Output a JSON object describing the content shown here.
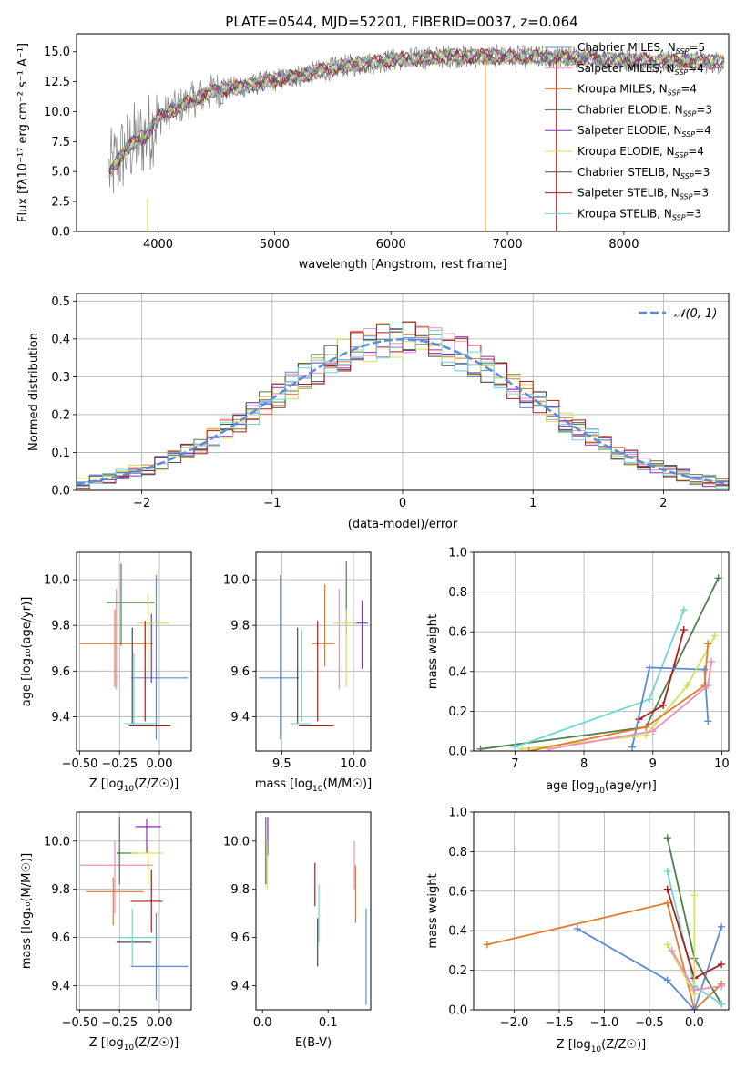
{
  "figure": {
    "title_text": "PLATE=0544, MJD=52201, FIBERID=0037, z=0.064"
  },
  "colors": {
    "chabrier_miles": "#5b8bd9",
    "salpeter_miles": "#e88fbf",
    "kroupa_miles": "#e07b2a",
    "chabrier_elodie": "#4c7f4c",
    "salpeter_elodie": "#8b2bbf",
    "kroupa_elodie": "#d4e05a",
    "chabrier_stelib": "#4a4a4a",
    "salpeter_stelib": "#b01a1a",
    "kroupa_stelib": "#6fd6d6",
    "data_gray": "#7f7f7f",
    "normal_curve": "#5b8bd9"
  },
  "chart_data": [
    {
      "id": "spectrum",
      "type": "line",
      "xlabel": "wavelength [Angstrom, rest frame]",
      "ylabel": "Flux [fλ10⁻¹⁷ erg cm⁻² s⁻¹ A⁻¹]",
      "xlim": [
        3300,
        8900
      ],
      "ylim": [
        0,
        16.5
      ],
      "xticks": [
        4000,
        5000,
        6000,
        7000,
        8000
      ],
      "yticks": [
        0.0,
        2.5,
        5.0,
        7.5,
        10.0,
        12.5,
        15.0
      ],
      "legend_position": "top-right",
      "legend": [
        {
          "label": "Chabrier MILES, N",
          "sub": "SSP",
          "suffix": "=5",
          "color_key": "chabrier_miles"
        },
        {
          "label": "Salpeter MILES, N",
          "sub": "SSP",
          "suffix": "=4",
          "color_key": "salpeter_miles"
        },
        {
          "label": "Kroupa MILES, N",
          "sub": "SSP",
          "suffix": "=4",
          "color_key": "kroupa_miles"
        },
        {
          "label": "Chabrier ELODIE, N",
          "sub": "SSP",
          "suffix": "=3",
          "color_key": "chabrier_elodie"
        },
        {
          "label": "Salpeter ELODIE, N",
          "sub": "SSP",
          "suffix": "=4",
          "color_key": "salpeter_elodie"
        },
        {
          "label": "Kroupa ELODIE, N",
          "sub": "SSP",
          "suffix": "=4",
          "color_key": "kroupa_elodie"
        },
        {
          "label": "Chabrier STELIB, N",
          "sub": "SSP",
          "suffix": "=3",
          "color_key": "chabrier_stelib"
        },
        {
          "label": "Salpeter STELIB, N",
          "sub": "SSP",
          "suffix": "=3",
          "color_key": "salpeter_stelib"
        },
        {
          "label": "Kroupa STELIB, N",
          "sub": "SSP",
          "suffix": "=3",
          "color_key": "kroupa_stelib"
        }
      ],
      "continuum": [
        [
          3580,
          5.0
        ],
        [
          3700,
          6.5
        ],
        [
          3800,
          7.5
        ],
        [
          3900,
          8.0
        ],
        [
          4000,
          9.5
        ],
        [
          4100,
          10.0
        ],
        [
          4300,
          11.0
        ],
        [
          4500,
          11.8
        ],
        [
          4800,
          12.2
        ],
        [
          5000,
          12.6
        ],
        [
          5300,
          13.2
        ],
        [
          5600,
          13.8
        ],
        [
          6000,
          14.3
        ],
        [
          6500,
          14.6
        ],
        [
          7000,
          14.6
        ],
        [
          7500,
          14.5
        ],
        [
          8000,
          14.3
        ],
        [
          8500,
          14.2
        ],
        [
          8900,
          14.1
        ]
      ],
      "vertical_drops": [
        {
          "x": 6810,
          "color_key": "kroupa_miles",
          "y_from": 14.6,
          "y_to": 0
        },
        {
          "x": 7420,
          "color_key": "salpeter_stelib",
          "y_from": 14.5,
          "y_to": 0
        },
        {
          "x": 3910,
          "color_key": "kroupa_elodie",
          "y_from": 2.8,
          "y_to": 0
        }
      ]
    },
    {
      "id": "residuals",
      "type": "histogram",
      "xlabel": "(data-model)/error",
      "ylabel": "Normed distribution",
      "xlim": [
        -2.5,
        2.5
      ],
      "ylim": [
        0,
        0.52
      ],
      "xticks": [
        -2,
        -1,
        0,
        1,
        2
      ],
      "xtick_labels": [
        "−2",
        "−1",
        "0",
        "1",
        "2"
      ],
      "yticks": [
        0.0,
        0.1,
        0.2,
        0.3,
        0.4,
        0.5
      ],
      "grid": true,
      "legend_position": "top-right",
      "legend_label": "𝒩(0, 1)",
      "bin_width": 0.1,
      "bin_start": -2.5
    },
    {
      "id": "age_vs_Z",
      "type": "errorbar",
      "xlabel_main": "Z [log",
      "xlabel_sub": "10",
      "xlabel_tail": "(Z/Z☉)]",
      "ylabel": "age  [log₁₀(age/yr)]",
      "xlim": [
        -0.52,
        0.2
      ],
      "ylim": [
        9.25,
        10.12
      ],
      "xticks": [
        -0.5,
        -0.25,
        0.0
      ],
      "xtick_labels": [
        "−0.50",
        "−0.25",
        "0.00"
      ],
      "yticks": [
        9.4,
        9.6,
        9.8,
        10.0
      ],
      "points": [
        {
          "color_key": "chabrier_miles",
          "x": 0.0,
          "xerr": 0.18,
          "y": 9.57,
          "yerr": 0.0
        },
        {
          "color_key": "chabrier_miles",
          "x": -0.02,
          "xerr": 0.0,
          "y": 9.66,
          "yerr": 0.36
        },
        {
          "color_key": "salpeter_miles",
          "x": -0.27,
          "xerr": 0.0,
          "y": 9.74,
          "yerr": 0.22
        },
        {
          "color_key": "kroupa_miles",
          "x": -0.27,
          "xerr": 0.23,
          "y": 9.72,
          "yerr": 0.0
        },
        {
          "color_key": "kroupa_miles",
          "x": -0.28,
          "xerr": 0.0,
          "y": 9.7,
          "yerr": 0.17
        },
        {
          "color_key": "chabrier_elodie",
          "x": -0.24,
          "xerr": 0.0,
          "y": 9.89,
          "yerr": 0.18
        },
        {
          "color_key": "chabrier_elodie",
          "x": -0.18,
          "xerr": 0.15,
          "y": 9.9,
          "yerr": 0.0
        },
        {
          "color_key": "salpeter_elodie",
          "x": -0.05,
          "xerr": 0.0,
          "y": 9.7,
          "yerr": 0.15
        },
        {
          "color_key": "kroupa_elodie",
          "x": -0.07,
          "xerr": 0.0,
          "y": 9.77,
          "yerr": 0.17
        },
        {
          "color_key": "kroupa_elodie",
          "x": -0.04,
          "xerr": 0.1,
          "y": 9.81,
          "yerr": 0.0
        },
        {
          "color_key": "chabrier_stelib",
          "x": -0.17,
          "xerr": 0.0,
          "y": 9.58,
          "yerr": 0.21
        },
        {
          "color_key": "salpeter_stelib",
          "x": -0.06,
          "xerr": 0.13,
          "y": 9.36,
          "yerr": 0.0
        },
        {
          "color_key": "salpeter_stelib",
          "x": -0.09,
          "xerr": 0.0,
          "y": 9.6,
          "yerr": 0.22
        },
        {
          "color_key": "kroupa_stelib",
          "x": -0.12,
          "xerr": 0.1,
          "y": 9.37,
          "yerr": 0.0
        },
        {
          "color_key": "kroupa_stelib",
          "x": -0.16,
          "xerr": 0.0,
          "y": 9.52,
          "yerr": 0.16
        }
      ]
    },
    {
      "id": "age_vs_mass",
      "type": "errorbar",
      "xlabel_main": "mass [log",
      "xlabel_sub": "10",
      "xlabel_tail": "(M/M☉)]",
      "xlim": [
        9.32,
        10.12
      ],
      "ylim": [
        9.25,
        10.12
      ],
      "xticks": [
        9.5,
        10.0
      ],
      "xtick_labels": [
        "9.5",
        "10.0"
      ],
      "yticks": [
        9.4,
        9.6,
        9.8,
        10.0
      ],
      "points": [
        {
          "color_key": "chabrier_miles",
          "x": 9.48,
          "xerr": 0.14,
          "y": 9.57,
          "yerr": 0.0
        },
        {
          "color_key": "chabrier_miles",
          "x": 9.49,
          "xerr": 0.0,
          "y": 9.66,
          "yerr": 0.36
        },
        {
          "color_key": "salpeter_miles",
          "x": 9.9,
          "xerr": 0.0,
          "y": 9.74,
          "yerr": 0.22
        },
        {
          "color_key": "kroupa_miles",
          "x": 9.79,
          "xerr": 0.08,
          "y": 9.72,
          "yerr": 0.0
        },
        {
          "color_key": "kroupa_miles",
          "x": 9.8,
          "xerr": 0.0,
          "y": 9.8,
          "yerr": 0.18
        },
        {
          "color_key": "chabrier_elodie",
          "x": 9.95,
          "xerr": 0.0,
          "y": 9.92,
          "yerr": 0.16
        },
        {
          "color_key": "salpeter_elodie",
          "x": 10.05,
          "xerr": 0.05,
          "y": 9.81,
          "yerr": 0.0
        },
        {
          "color_key": "salpeter_elodie",
          "x": 10.06,
          "xerr": 0.0,
          "y": 9.76,
          "yerr": 0.15
        },
        {
          "color_key": "kroupa_elodie",
          "x": 9.94,
          "xerr": 0.08,
          "y": 9.81,
          "yerr": 0.0
        },
        {
          "color_key": "kroupa_elodie",
          "x": 9.95,
          "xerr": 0.0,
          "y": 9.7,
          "yerr": 0.17
        },
        {
          "color_key": "chabrier_stelib",
          "x": 9.61,
          "xerr": 0.0,
          "y": 9.58,
          "yerr": 0.21
        },
        {
          "color_key": "salpeter_stelib",
          "x": 9.74,
          "xerr": 0.12,
          "y": 9.36,
          "yerr": 0.0
        },
        {
          "color_key": "salpeter_stelib",
          "x": 9.75,
          "xerr": 0.0,
          "y": 9.6,
          "yerr": 0.22
        },
        {
          "color_key": "kroupa_stelib",
          "x": 9.63,
          "xerr": 0.07,
          "y": 9.37,
          "yerr": 0.0
        },
        {
          "color_key": "kroupa_stelib",
          "x": 9.64,
          "xerr": 0.0,
          "y": 9.58,
          "yerr": 0.2
        }
      ]
    },
    {
      "id": "massweight_vs_age",
      "type": "line",
      "xlabel_main": "age  [log",
      "xlabel_sub": "10",
      "xlabel_tail": "(age/yr)]",
      "ylabel": "mass weight",
      "xlim": [
        6.4,
        10.1
      ],
      "ylim": [
        0,
        1.0
      ],
      "xticks": [
        7,
        8,
        9,
        10
      ],
      "yticks": [
        0.0,
        0.2,
        0.4,
        0.6,
        0.8,
        1.0
      ],
      "grid": true,
      "series": [
        {
          "color_key": "chabrier_elodie",
          "x": [
            6.5,
            8.9,
            9.95
          ],
          "y": [
            0.01,
            0.12,
            0.87
          ]
        },
        {
          "color_key": "kroupa_stelib",
          "x": [
            7.0,
            8.95,
            9.45
          ],
          "y": [
            0.02,
            0.26,
            0.71
          ]
        },
        {
          "color_key": "salpeter_stelib",
          "x": [
            8.8,
            9.15,
            9.45
          ],
          "y": [
            0.16,
            0.23,
            0.61
          ]
        },
        {
          "color_key": "chabrier_miles",
          "x": [
            8.7,
            8.95,
            9.75,
            9.8
          ],
          "y": [
            0.02,
            0.42,
            0.41,
            0.15
          ]
        },
        {
          "color_key": "kroupa_elodie",
          "x": [
            7.1,
            8.9,
            9.5,
            9.9
          ],
          "y": [
            0.01,
            0.08,
            0.33,
            0.58
          ]
        },
        {
          "color_key": "kroupa_miles",
          "x": [
            7.2,
            8.9,
            9.75,
            9.8
          ],
          "y": [
            0.0,
            0.12,
            0.33,
            0.54
          ]
        },
        {
          "color_key": "salpeter_miles",
          "x": [
            7.5,
            9.0,
            9.8,
            9.85
          ],
          "y": [
            0.01,
            0.1,
            0.33,
            0.45
          ]
        }
      ]
    },
    {
      "id": "mass_vs_Z",
      "type": "errorbar",
      "xlabel_main": "Z [log",
      "xlabel_sub": "10",
      "xlabel_tail": "(Z/Z☉)]",
      "ylabel": "mass [log₁₀(M/M☉)]",
      "xlim": [
        -0.52,
        0.2
      ],
      "ylim": [
        9.3,
        10.12
      ],
      "xticks": [
        -0.5,
        -0.25,
        0.0
      ],
      "xtick_labels": [
        "−0.50",
        "−0.25",
        "0.00"
      ],
      "yticks": [
        9.4,
        9.6,
        9.8,
        10.0
      ],
      "points": [
        {
          "color_key": "chabrier_miles",
          "x": 0.0,
          "xerr": 0.18,
          "y": 9.48,
          "yerr": 0.0
        },
        {
          "color_key": "chabrier_miles",
          "x": -0.02,
          "xerr": 0.0,
          "y": 9.52,
          "yerr": 0.18
        },
        {
          "color_key": "salpeter_miles",
          "x": -0.27,
          "xerr": 0.23,
          "y": 9.9,
          "yerr": 0.0
        },
        {
          "color_key": "salpeter_miles",
          "x": -0.28,
          "xerr": 0.0,
          "y": 9.85,
          "yerr": 0.15
        },
        {
          "color_key": "kroupa_miles",
          "x": -0.28,
          "xerr": 0.18,
          "y": 9.79,
          "yerr": 0.0
        },
        {
          "color_key": "kroupa_miles",
          "x": -0.29,
          "xerr": 0.0,
          "y": 9.75,
          "yerr": 0.1
        },
        {
          "color_key": "chabrier_elodie",
          "x": -0.25,
          "xerr": 0.0,
          "y": 9.96,
          "yerr": 0.14
        },
        {
          "color_key": "chabrier_elodie",
          "x": -0.2,
          "xerr": 0.07,
          "y": 9.95,
          "yerr": 0.0
        },
        {
          "color_key": "salpeter_elodie",
          "x": -0.07,
          "xerr": 0.08,
          "y": 10.06,
          "yerr": 0.0
        },
        {
          "color_key": "salpeter_elodie",
          "x": -0.08,
          "xerr": 0.0,
          "y": 10.02,
          "yerr": 0.07
        },
        {
          "color_key": "kroupa_elodie",
          "x": -0.08,
          "xerr": 0.1,
          "y": 9.95,
          "yerr": 0.0
        },
        {
          "color_key": "kroupa_elodie",
          "x": -0.07,
          "xerr": 0.0,
          "y": 9.9,
          "yerr": 0.08
        },
        {
          "color_key": "chabrier_stelib",
          "x": -0.16,
          "xerr": 0.11,
          "y": 9.58,
          "yerr": 0.0
        },
        {
          "color_key": "salpeter_stelib",
          "x": -0.08,
          "xerr": 0.1,
          "y": 9.75,
          "yerr": 0.0
        },
        {
          "color_key": "salpeter_stelib",
          "x": -0.05,
          "xerr": 0.0,
          "y": 9.75,
          "yerr": 0.13
        },
        {
          "color_key": "kroupa_stelib",
          "x": -0.14,
          "xerr": 0.11,
          "y": 9.6,
          "yerr": 0.0
        },
        {
          "color_key": "kroupa_stelib",
          "x": -0.17,
          "xerr": 0.0,
          "y": 9.6,
          "yerr": 0.12
        }
      ]
    },
    {
      "id": "mass_vs_EBV",
      "type": "errorbar",
      "xlabel": "E(B-V)",
      "xlim": [
        -0.01,
        0.165
      ],
      "ylim": [
        9.3,
        10.12
      ],
      "xticks": [
        0.0,
        0.1
      ],
      "xtick_labels": [
        "0.0",
        "0.1"
      ],
      "yticks": [
        9.4,
        9.6,
        9.8,
        10.0
      ],
      "points": [
        {
          "color_key": "chabrier_miles",
          "x": 0.158,
          "xerr": 0.0,
          "y": 9.52,
          "yerr": 0.2
        },
        {
          "color_key": "salpeter_miles",
          "x": 0.14,
          "xerr": 0.0,
          "y": 9.9,
          "yerr": 0.1
        },
        {
          "color_key": "kroupa_miles",
          "x": 0.142,
          "xerr": 0.0,
          "y": 9.78,
          "yerr": 0.12
        },
        {
          "color_key": "chabrier_elodie",
          "x": 0.005,
          "xerr": 0.0,
          "y": 9.96,
          "yerr": 0.14
        },
        {
          "color_key": "salpeter_elodie",
          "x": 0.008,
          "xerr": 0.0,
          "y": 10.02,
          "yerr": 0.08
        },
        {
          "color_key": "kroupa_elodie",
          "x": 0.007,
          "xerr": 0.0,
          "y": 9.9,
          "yerr": 0.1
        },
        {
          "color_key": "chabrier_stelib",
          "x": 0.084,
          "xerr": 0.0,
          "y": 9.58,
          "yerr": 0.1
        },
        {
          "color_key": "salpeter_stelib",
          "x": 0.08,
          "xerr": 0.0,
          "y": 9.82,
          "yerr": 0.09
        },
        {
          "color_key": "kroupa_stelib",
          "x": 0.086,
          "xerr": 0.0,
          "y": 9.7,
          "yerr": 0.12
        }
      ]
    },
    {
      "id": "massweight_vs_Z",
      "type": "line",
      "xlabel_main": "Z [log",
      "xlabel_sub": "10",
      "xlabel_tail": "(Z/Z☉)]",
      "ylabel": "mass weight",
      "xlim": [
        -2.45,
        0.38
      ],
      "ylim": [
        0,
        1.0
      ],
      "xticks": [
        -2.0,
        -1.5,
        -1.0,
        -0.5,
        0.0
      ],
      "xtick_labels": [
        "−2.0",
        "−1.5",
        "−1.0",
        "−0.5",
        "0.0"
      ],
      "yticks": [
        0.0,
        0.2,
        0.4,
        0.6,
        0.8,
        1.0
      ],
      "grid": true,
      "series": [
        {
          "color_key": "kroupa_miles",
          "x": [
            -2.3,
            -0.3,
            0.0,
            0.3
          ],
          "y": [
            0.33,
            0.54,
            0.0,
            0.13
          ]
        },
        {
          "color_key": "chabrier_miles",
          "x": [
            -1.3,
            -0.3,
            0.0,
            0.3
          ],
          "y": [
            0.41,
            0.15,
            0.0,
            0.42
          ]
        },
        {
          "color_key": "chabrier_elodie",
          "x": [
            -0.3,
            0.0,
            0.3
          ],
          "y": [
            0.87,
            0.26,
            0.03
          ]
        },
        {
          "color_key": "kroupa_stelib",
          "x": [
            -0.3,
            0.0,
            0.3
          ],
          "y": [
            0.7,
            0.12,
            0.03
          ]
        },
        {
          "color_key": "salpeter_stelib",
          "x": [
            -0.3,
            0.0,
            0.3
          ],
          "y": [
            0.61,
            0.16,
            0.23
          ]
        },
        {
          "color_key": "kroupa_elodie",
          "x": [
            -0.3,
            0.0,
            0.0
          ],
          "y": [
            0.33,
            0.08,
            0.58
          ]
        },
        {
          "color_key": "salpeter_miles",
          "x": [
            -0.25,
            0.0,
            0.3
          ],
          "y": [
            0.3,
            0.1,
            0.12
          ]
        }
      ]
    }
  ]
}
